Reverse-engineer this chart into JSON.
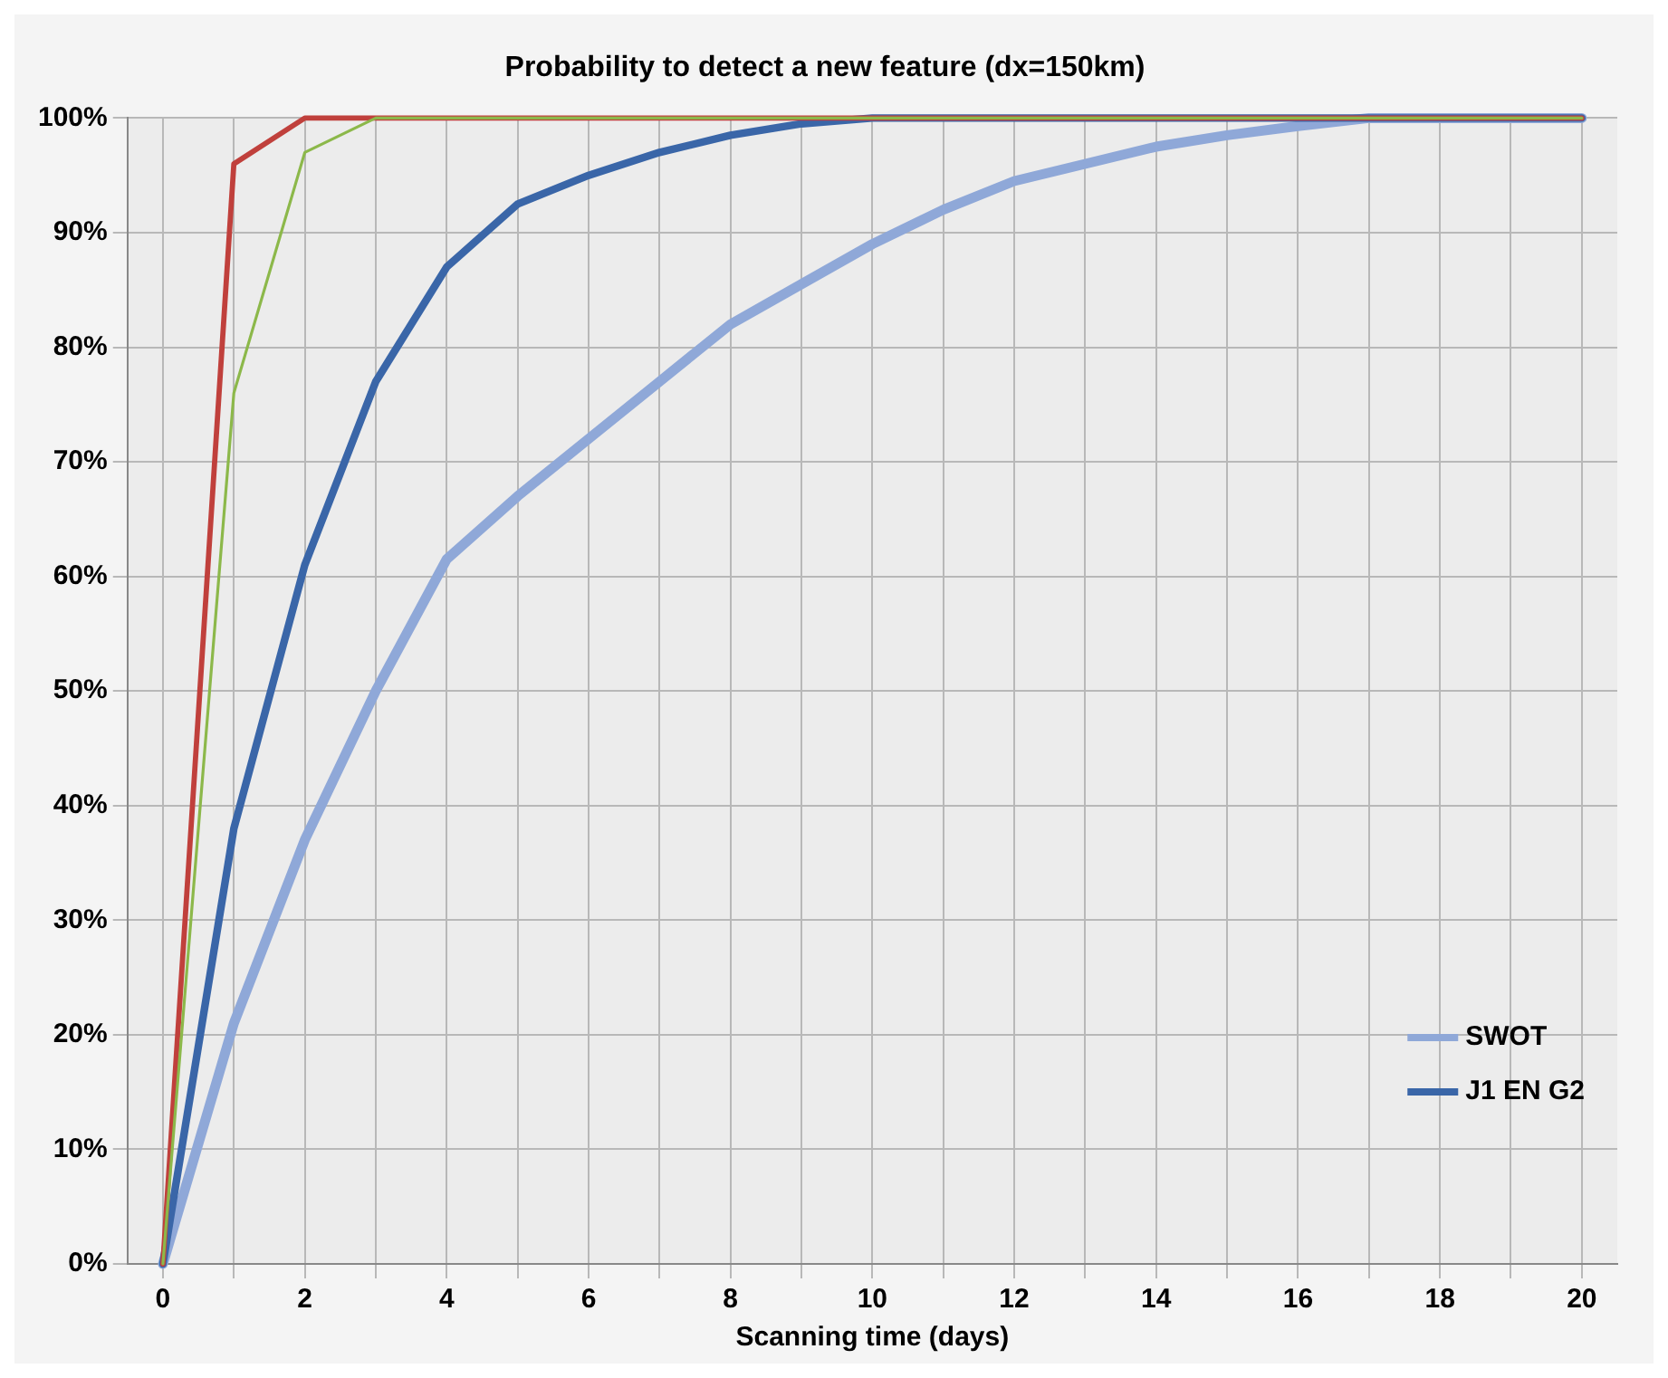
{
  "chart_data": {
    "type": "line",
    "title": "Probability to detect a new feature (dx=150km)",
    "xlabel": "Scanning time (days)",
    "x": [
      0,
      1,
      2,
      3,
      4,
      5,
      6,
      7,
      8,
      9,
      10,
      11,
      12,
      13,
      14,
      15,
      16,
      17,
      18,
      19,
      20
    ],
    "series": [
      {
        "name": "SWOT",
        "color": "#8fa8d8",
        "values": [
          0,
          21,
          37,
          50,
          61.5,
          67,
          72,
          77,
          82,
          85.5,
          89,
          92,
          94.5,
          96,
          97.5,
          98.5,
          99.3,
          100,
          100,
          100,
          100
        ]
      },
      {
        "name": "J1 EN G2",
        "color": "#3a66a8",
        "values": [
          0,
          38,
          61,
          77,
          87,
          92.5,
          95,
          97,
          98.5,
          99.5,
          100,
          100,
          100,
          100,
          100,
          100,
          100,
          100,
          100,
          100,
          100
        ]
      },
      {
        "color": "#c0403c",
        "values": [
          0,
          96,
          100,
          100,
          100,
          100,
          100,
          100,
          100,
          100,
          100,
          100,
          100,
          100,
          100,
          100,
          100,
          100,
          100,
          100,
          100
        ]
      },
      {
        "color": "#8cb84a",
        "values": [
          0,
          76,
          97,
          100,
          100,
          100,
          100,
          100,
          100,
          100,
          100,
          100,
          100,
          100,
          100,
          100,
          100,
          100,
          100,
          100,
          100
        ]
      }
    ],
    "xlim": [
      -0.5,
      20.5
    ],
    "xticks": [
      0,
      {
        "value": 1,
        "label": null
      },
      2,
      {
        "value": 3,
        "label": null
      },
      4,
      {
        "value": 5,
        "label": null
      },
      6,
      {
        "value": 7,
        "label": null
      },
      8,
      {
        "value": 9,
        "label": null
      },
      10,
      {
        "value": 11,
        "label": null
      },
      12,
      {
        "value": 13,
        "label": null
      },
      14,
      {
        "value": 15,
        "label": null
      },
      16,
      {
        "value": 17,
        "label": null
      },
      18,
      {
        "value": 19,
        "label": null
      },
      20
    ],
    "ylim": [
      0,
      100
    ],
    "yticks": [
      {
        "value": 0,
        "label": "0%"
      },
      {
        "value": 10,
        "label": "10%"
      },
      {
        "value": 20,
        "label": "20%"
      },
      {
        "value": 30,
        "label": "30%"
      },
      {
        "value": 40,
        "label": "40%"
      },
      {
        "value": 50,
        "label": "50%"
      },
      {
        "value": 60,
        "label": "60%"
      },
      {
        "value": 70,
        "label": "70%"
      },
      {
        "value": 80,
        "label": "80%"
      },
      {
        "value": 90,
        "label": "90%"
      },
      {
        "value": 100,
        "label": "100%"
      }
    ],
    "grid": true,
    "legend": "bottom right",
    "marker": "none",
    "line_style": "solid"
  }
}
